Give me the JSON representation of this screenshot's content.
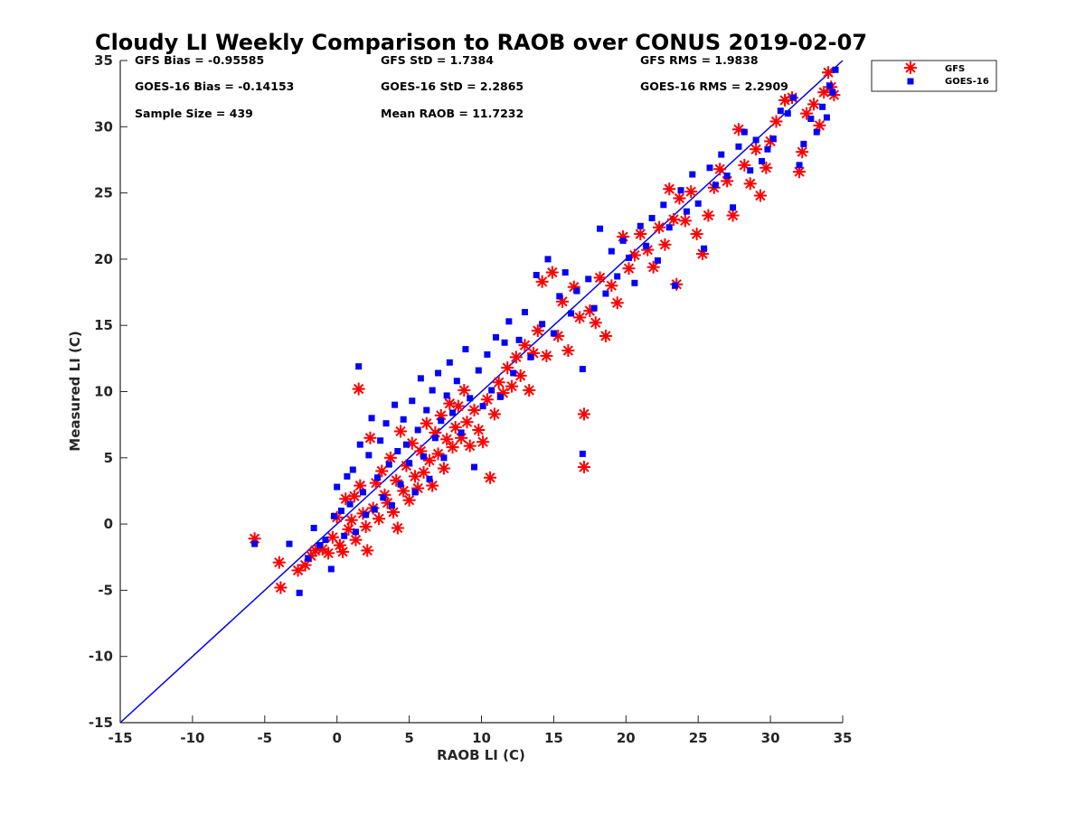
{
  "chart_data": {
    "type": "scatter",
    "title": "Cloudy LI Weekly Comparison to RAOB over CONUS 2019-02-07",
    "xlabel": "RAOB LI (C)",
    "ylabel": "Measured LI (C)",
    "xlim": [
      -15,
      35
    ],
    "ylim": [
      -15,
      35
    ],
    "xticks": [
      "-15",
      "-10",
      "-5",
      "0",
      "5",
      "10",
      "15",
      "20",
      "25",
      "30",
      "35"
    ],
    "yticks": [
      "-15",
      "-10",
      "-5",
      "0",
      "5",
      "10",
      "15",
      "20",
      "25",
      "30",
      "35"
    ],
    "grid": false,
    "legend_placement": "outside top-right",
    "reference_line": {
      "from": [
        -15,
        -15
      ],
      "to": [
        35,
        35
      ],
      "color": "#0000ff"
    },
    "stats": [
      {
        "text": "GFS Bias = -0.95585"
      },
      {
        "text": "GFS StD = 1.7384"
      },
      {
        "text": "GFS RMS = 1.9838"
      },
      {
        "text": "GOES-16 Bias = -0.14153"
      },
      {
        "text": "GOES-16 StD = 2.2865"
      },
      {
        "text": "GOES-16 RMS = 2.2909"
      },
      {
        "text": "Sample Size = 439"
      },
      {
        "text": "Mean RAOB = 11.7232"
      }
    ],
    "series": [
      {
        "name": "GFS",
        "marker": "asterisk",
        "color": "#ff0000",
        "points": [
          [
            -5.7,
            -1.1
          ],
          [
            -4.0,
            -2.9
          ],
          [
            -3.9,
            -4.8
          ],
          [
            -2.7,
            -3.5
          ],
          [
            -2.2,
            -3.1
          ],
          [
            -1.8,
            -2.4
          ],
          [
            -1.5,
            -2.0
          ],
          [
            -1.0,
            -1.9
          ],
          [
            -0.6,
            -2.2
          ],
          [
            -0.3,
            -1.0
          ],
          [
            0.0,
            0.5
          ],
          [
            0.2,
            -1.6
          ],
          [
            0.4,
            -2.1
          ],
          [
            0.6,
            1.9
          ],
          [
            0.8,
            -0.4
          ],
          [
            1.0,
            0.3
          ],
          [
            1.2,
            2.1
          ],
          [
            1.3,
            -1.2
          ],
          [
            1.5,
            10.2
          ],
          [
            1.6,
            2.9
          ],
          [
            1.8,
            0.8
          ],
          [
            2.0,
            -0.2
          ],
          [
            2.1,
            -2.0
          ],
          [
            2.3,
            6.5
          ],
          [
            2.5,
            1.2
          ],
          [
            2.7,
            3.1
          ],
          [
            2.9,
            0.4
          ],
          [
            3.1,
            4.0
          ],
          [
            3.3,
            2.2
          ],
          [
            3.5,
            1.6
          ],
          [
            3.7,
            5.0
          ],
          [
            3.9,
            0.9
          ],
          [
            4.1,
            3.3
          ],
          [
            4.2,
            -0.3
          ],
          [
            4.4,
            7.0
          ],
          [
            4.6,
            2.5
          ],
          [
            4.8,
            4.4
          ],
          [
            5.0,
            1.8
          ],
          [
            5.2,
            6.1
          ],
          [
            5.4,
            3.6
          ],
          [
            5.6,
            2.7
          ],
          [
            5.8,
            5.5
          ],
          [
            6.0,
            3.9
          ],
          [
            6.2,
            7.6
          ],
          [
            6.4,
            4.8
          ],
          [
            6.6,
            2.9
          ],
          [
            6.8,
            6.9
          ],
          [
            7.0,
            5.3
          ],
          [
            7.2,
            8.2
          ],
          [
            7.4,
            4.2
          ],
          [
            7.6,
            6.4
          ],
          [
            7.8,
            9.1
          ],
          [
            8.0,
            5.8
          ],
          [
            8.2,
            7.3
          ],
          [
            8.4,
            8.9
          ],
          [
            8.6,
            6.5
          ],
          [
            8.8,
            10.1
          ],
          [
            9.0,
            7.7
          ],
          [
            9.2,
            5.9
          ],
          [
            9.5,
            8.6
          ],
          [
            9.8,
            7.1
          ],
          [
            10.1,
            6.2
          ],
          [
            10.4,
            9.4
          ],
          [
            10.6,
            3.5
          ],
          [
            10.9,
            8.3
          ],
          [
            11.2,
            10.7
          ],
          [
            11.5,
            9.9
          ],
          [
            11.8,
            11.8
          ],
          [
            12.1,
            10.4
          ],
          [
            12.4,
            12.6
          ],
          [
            12.7,
            11.2
          ],
          [
            13.0,
            13.5
          ],
          [
            13.3,
            10.1
          ],
          [
            13.6,
            12.9
          ],
          [
            13.9,
            14.6
          ],
          [
            14.2,
            18.3
          ],
          [
            14.5,
            12.7
          ],
          [
            14.9,
            19.0
          ],
          [
            15.3,
            14.2
          ],
          [
            15.6,
            16.8
          ],
          [
            16.0,
            13.1
          ],
          [
            16.4,
            17.9
          ],
          [
            16.8,
            15.6
          ],
          [
            17.1,
            8.3
          ],
          [
            17.1,
            4.3
          ],
          [
            17.5,
            16.1
          ],
          [
            17.9,
            15.2
          ],
          [
            18.2,
            18.6
          ],
          [
            18.6,
            14.2
          ],
          [
            19.0,
            18.0
          ],
          [
            19.4,
            16.7
          ],
          [
            19.8,
            21.7
          ],
          [
            20.2,
            19.3
          ],
          [
            20.6,
            20.3
          ],
          [
            21.0,
            21.9
          ],
          [
            21.5,
            20.7
          ],
          [
            21.9,
            19.4
          ],
          [
            22.3,
            22.4
          ],
          [
            22.7,
            21.1
          ],
          [
            23.0,
            25.3
          ],
          [
            23.3,
            23.0
          ],
          [
            23.5,
            18.1
          ],
          [
            23.7,
            24.6
          ],
          [
            24.1,
            22.9
          ],
          [
            24.5,
            25.1
          ],
          [
            24.9,
            21.9
          ],
          [
            25.3,
            20.4
          ],
          [
            25.7,
            23.3
          ],
          [
            26.1,
            25.4
          ],
          [
            26.5,
            26.8
          ],
          [
            27.0,
            25.9
          ],
          [
            27.4,
            23.3
          ],
          [
            27.8,
            29.8
          ],
          [
            28.2,
            27.1
          ],
          [
            28.6,
            25.7
          ],
          [
            29.0,
            28.3
          ],
          [
            29.3,
            24.8
          ],
          [
            29.7,
            26.9
          ],
          [
            30.0,
            28.9
          ],
          [
            30.4,
            30.4
          ],
          [
            31.0,
            32.0
          ],
          [
            31.5,
            32.2
          ],
          [
            32.0,
            26.6
          ],
          [
            32.2,
            28.1
          ],
          [
            32.5,
            31.0
          ],
          [
            33.0,
            31.7
          ],
          [
            33.4,
            30.1
          ],
          [
            33.7,
            32.6
          ],
          [
            34.0,
            34.1
          ],
          [
            34.2,
            33.0
          ],
          [
            34.4,
            32.4
          ]
        ]
      },
      {
        "name": "GOES-16",
        "marker": "square",
        "color": "#0000ff",
        "points": [
          [
            -5.7,
            -1.5
          ],
          [
            -3.3,
            -1.5
          ],
          [
            -2.6,
            -5.2
          ],
          [
            -2.0,
            -2.6
          ],
          [
            -1.6,
            -0.3
          ],
          [
            -1.2,
            -1.6
          ],
          [
            -0.8,
            -1.2
          ],
          [
            -0.4,
            -3.4
          ],
          [
            -0.2,
            0.6
          ],
          [
            0.0,
            2.8
          ],
          [
            0.3,
            1.0
          ],
          [
            0.5,
            -0.9
          ],
          [
            0.7,
            3.6
          ],
          [
            0.9,
            1.5
          ],
          [
            1.1,
            4.1
          ],
          [
            1.3,
            -0.6
          ],
          [
            1.5,
            11.9
          ],
          [
            1.6,
            6.0
          ],
          [
            1.8,
            2.4
          ],
          [
            2.0,
            0.7
          ],
          [
            2.2,
            5.2
          ],
          [
            2.4,
            8.0
          ],
          [
            2.6,
            1.1
          ],
          [
            2.8,
            3.5
          ],
          [
            3.0,
            6.3
          ],
          [
            3.2,
            2.0
          ],
          [
            3.4,
            7.6
          ],
          [
            3.6,
            4.5
          ],
          [
            3.8,
            1.4
          ],
          [
            4.0,
            9.0
          ],
          [
            4.2,
            5.5
          ],
          [
            4.4,
            3.0
          ],
          [
            4.6,
            7.9
          ],
          [
            4.8,
            6.0
          ],
          [
            5.0,
            4.6
          ],
          [
            5.2,
            9.3
          ],
          [
            5.4,
            2.4
          ],
          [
            5.6,
            7.1
          ],
          [
            5.8,
            11.0
          ],
          [
            6.0,
            5.1
          ],
          [
            6.2,
            8.6
          ],
          [
            6.4,
            3.4
          ],
          [
            6.6,
            10.1
          ],
          [
            6.8,
            6.5
          ],
          [
            7.0,
            11.4
          ],
          [
            7.2,
            7.8
          ],
          [
            7.4,
            5.0
          ],
          [
            7.6,
            9.7
          ],
          [
            7.8,
            12.2
          ],
          [
            8.0,
            8.4
          ],
          [
            8.3,
            10.8
          ],
          [
            8.6,
            6.9
          ],
          [
            8.9,
            13.2
          ],
          [
            9.2,
            9.5
          ],
          [
            9.5,
            4.3
          ],
          [
            9.8,
            11.6
          ],
          [
            10.1,
            8.9
          ],
          [
            10.4,
            12.8
          ],
          [
            10.7,
            10.1
          ],
          [
            11.0,
            14.1
          ],
          [
            11.3,
            9.6
          ],
          [
            11.6,
            13.7
          ],
          [
            11.9,
            15.3
          ],
          [
            12.2,
            11.4
          ],
          [
            12.6,
            13.9
          ],
          [
            13.0,
            16.0
          ],
          [
            13.4,
            12.6
          ],
          [
            13.8,
            18.8
          ],
          [
            14.2,
            15.1
          ],
          [
            14.6,
            20.0
          ],
          [
            15.0,
            14.4
          ],
          [
            15.4,
            17.2
          ],
          [
            15.8,
            19.0
          ],
          [
            16.2,
            15.9
          ],
          [
            16.6,
            17.6
          ],
          [
            17.0,
            11.7
          ],
          [
            17.0,
            5.3
          ],
          [
            17.4,
            18.5
          ],
          [
            17.8,
            16.3
          ],
          [
            18.2,
            22.3
          ],
          [
            18.6,
            17.4
          ],
          [
            19.0,
            20.6
          ],
          [
            19.4,
            18.7
          ],
          [
            19.8,
            21.4
          ],
          [
            20.2,
            20.1
          ],
          [
            20.6,
            18.2
          ],
          [
            21.0,
            22.5
          ],
          [
            21.4,
            21.0
          ],
          [
            21.8,
            23.1
          ],
          [
            22.2,
            19.9
          ],
          [
            22.6,
            24.1
          ],
          [
            23.0,
            22.4
          ],
          [
            23.4,
            18.0
          ],
          [
            23.8,
            25.2
          ],
          [
            24.2,
            23.6
          ],
          [
            24.6,
            26.4
          ],
          [
            25.0,
            24.2
          ],
          [
            25.4,
            20.8
          ],
          [
            25.8,
            26.9
          ],
          [
            26.2,
            25.6
          ],
          [
            26.6,
            27.9
          ],
          [
            27.0,
            26.3
          ],
          [
            27.4,
            23.9
          ],
          [
            27.8,
            28.5
          ],
          [
            28.2,
            29.6
          ],
          [
            28.6,
            26.7
          ],
          [
            29.0,
            29.0
          ],
          [
            29.4,
            27.4
          ],
          [
            29.8,
            28.3
          ],
          [
            30.2,
            29.1
          ],
          [
            30.7,
            31.2
          ],
          [
            31.2,
            31.0
          ],
          [
            31.6,
            32.2
          ],
          [
            32.0,
            27.1
          ],
          [
            32.3,
            28.7
          ],
          [
            32.8,
            30.6
          ],
          [
            33.2,
            29.6
          ],
          [
            33.6,
            31.5
          ],
          [
            33.9,
            30.7
          ],
          [
            34.1,
            33.1
          ],
          [
            34.3,
            32.6
          ],
          [
            34.5,
            34.3
          ]
        ]
      }
    ]
  }
}
